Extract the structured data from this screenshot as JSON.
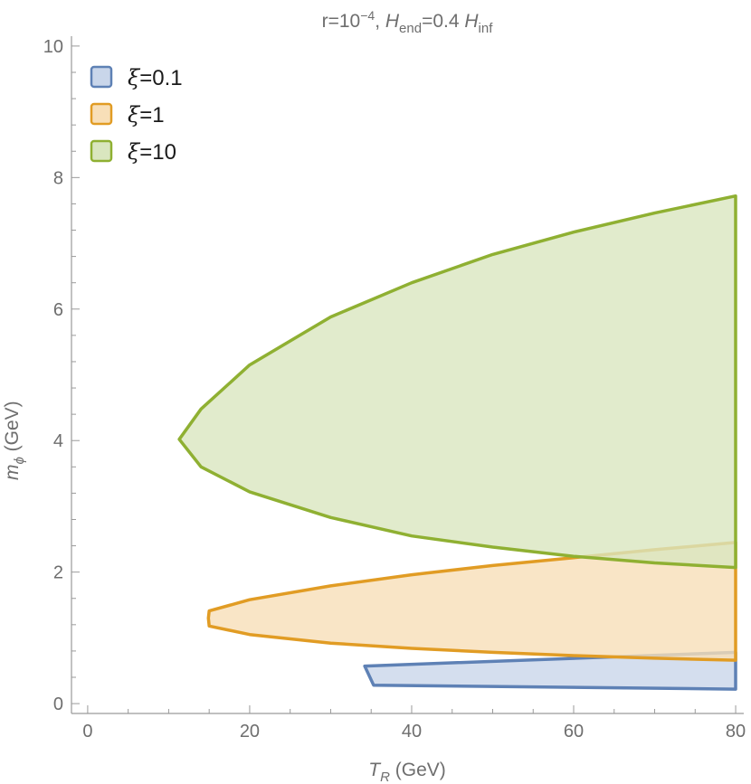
{
  "chart_data": {
    "type": "area",
    "title": {
      "parts": [
        {
          "text": "r=10",
          "style": "normal"
        },
        {
          "text": "−4",
          "style": "sup"
        },
        {
          "text": ", ",
          "style": "normal"
        },
        {
          "text": "H",
          "style": "italic"
        },
        {
          "text": "end",
          "style": "sub"
        },
        {
          "text": "=0.4 ",
          "style": "normal"
        },
        {
          "text": "H",
          "style": "italic"
        },
        {
          "text": "inf",
          "style": "sub"
        }
      ]
    },
    "xlabel": {
      "parts": [
        {
          "text": "T",
          "style": "italic"
        },
        {
          "text": "R",
          "style": "sub-italic"
        },
        {
          "text": " (GeV)",
          "style": "normal"
        }
      ]
    },
    "ylabel": {
      "parts": [
        {
          "text": "m",
          "style": "italic"
        },
        {
          "text": "ϕ",
          "style": "sub-italic"
        },
        {
          "text": " (GeV)",
          "style": "normal"
        }
      ]
    },
    "xlim": [
      -2,
      81
    ],
    "ylim": [
      -0.15,
      10.15
    ],
    "xticks": [
      0,
      20,
      40,
      60,
      80
    ],
    "xtick_labels": [
      "0",
      "20",
      "40",
      "60",
      "80"
    ],
    "yticks": [
      0,
      2,
      4,
      6,
      8,
      10
    ],
    "ytick_labels": [
      "0",
      "2",
      "4",
      "6",
      "8",
      "10"
    ],
    "grid": false,
    "legend_position": "top-left",
    "series": [
      {
        "name": "ξ=0.1",
        "legend_symbol": "ξ",
        "legend_value": "=0.1",
        "stroke": "#5e81b5",
        "fill": "#c9d6ea",
        "points": [
          [
            34.2,
            0.57
          ],
          [
            35.3,
            0.28
          ],
          [
            80,
            0.22
          ],
          [
            80,
            0.78
          ]
        ]
      },
      {
        "name": "ξ=1",
        "legend_symbol": "ξ",
        "legend_value": "=1",
        "stroke": "#e19c24",
        "fill": "#f8dfb8",
        "upper": {
          "x": [
            15,
            20,
            30,
            40,
            50,
            60,
            70,
            80
          ],
          "y": [
            1.41,
            1.58,
            1.79,
            1.96,
            2.1,
            2.22,
            2.34,
            2.45
          ]
        },
        "lower": {
          "x": [
            15,
            20,
            30,
            40,
            50,
            60,
            70,
            80
          ],
          "y": [
            1.18,
            1.05,
            0.92,
            0.84,
            0.78,
            0.73,
            0.69,
            0.66
          ]
        },
        "tip": [
          14.9,
          1.3
        ]
      },
      {
        "name": "ξ=10",
        "legend_symbol": "ξ",
        "legend_value": "=10",
        "stroke": "#8fb032",
        "fill": "#d9e6bf",
        "upper": {
          "x": [
            11.3,
            14,
            20,
            30,
            40,
            50,
            60,
            70,
            80
          ],
          "y": [
            4.02,
            4.48,
            5.15,
            5.88,
            6.4,
            6.83,
            7.17,
            7.46,
            7.72
          ]
        },
        "lower": {
          "x": [
            11.3,
            14,
            20,
            30,
            40,
            50,
            60,
            70,
            80
          ],
          "y": [
            4.02,
            3.6,
            3.22,
            2.83,
            2.55,
            2.38,
            2.24,
            2.14,
            2.07
          ]
        }
      }
    ]
  }
}
